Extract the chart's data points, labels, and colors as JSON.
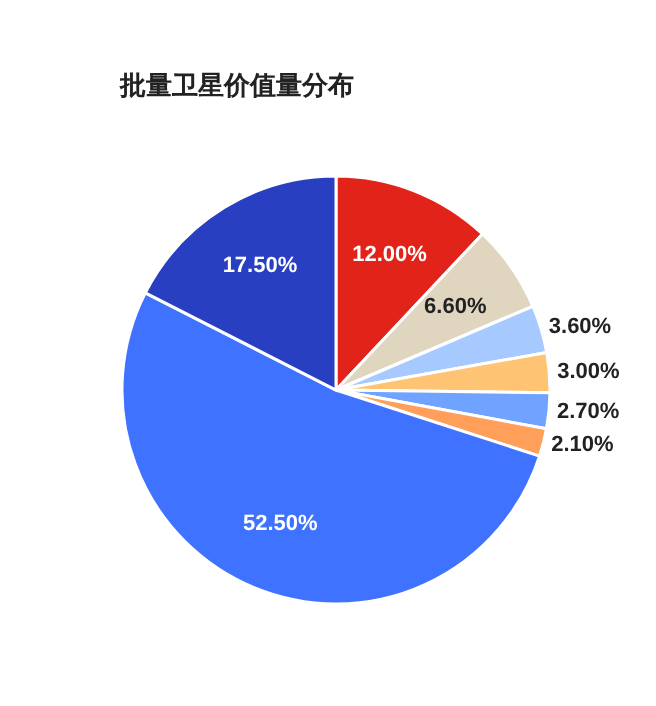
{
  "chart_data": {
    "type": "pie",
    "title": "批量卫星价值量分布",
    "categories": [
      null,
      null,
      null,
      null,
      null,
      null,
      null,
      null
    ],
    "values": [
      12.0,
      6.6,
      3.6,
      3.0,
      2.7,
      2.1,
      52.5,
      17.5
    ],
    "value_labels": [
      "12.00%",
      "6.60%",
      "3.60%",
      "3.00%",
      "2.70%",
      "2.10%",
      "52.50%",
      "17.50%"
    ],
    "colors": [
      "#e2231a",
      "#e0d6c0",
      "#a6caff",
      "#ffc473",
      "#70a3ff",
      "#ff9f5a",
      "#3f72ff",
      "#283fc1"
    ]
  }
}
